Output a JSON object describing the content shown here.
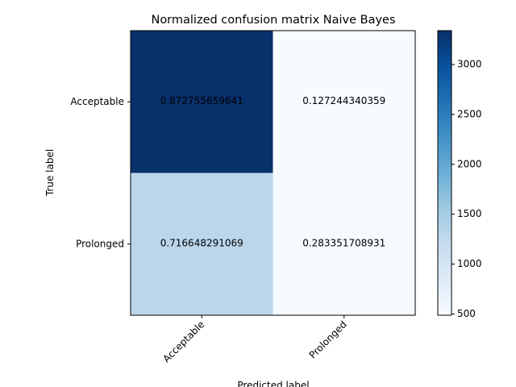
{
  "chart_data": {
    "type": "heatmap",
    "title": "Normalized confusion matrix Naive Bayes",
    "xlabel": "Predicted label",
    "ylabel": "True label",
    "x_categories": [
      "Acceptable",
      "Prolonged"
    ],
    "y_categories": [
      "Acceptable",
      "Prolonged"
    ],
    "cells": [
      [
        {
          "label": "0.872755659641",
          "color_value": 3340
        },
        {
          "label": "0.127244340359",
          "color_value": 487
        }
      ],
      [
        {
          "label": "0.716648291069",
          "color_value": 1300
        },
        {
          "label": "0.283351708931",
          "color_value": 514
        }
      ]
    ],
    "colorbar": {
      "colormap": "Blues",
      "range": [
        487,
        3340
      ],
      "ticks": [
        "500",
        "1000",
        "1500",
        "2000",
        "2500",
        "3000"
      ],
      "tick_values": [
        500,
        1000,
        1500,
        2000,
        2500,
        3000
      ]
    },
    "colors": {
      "min": "#f7fbff",
      "max": "#08306b"
    }
  }
}
